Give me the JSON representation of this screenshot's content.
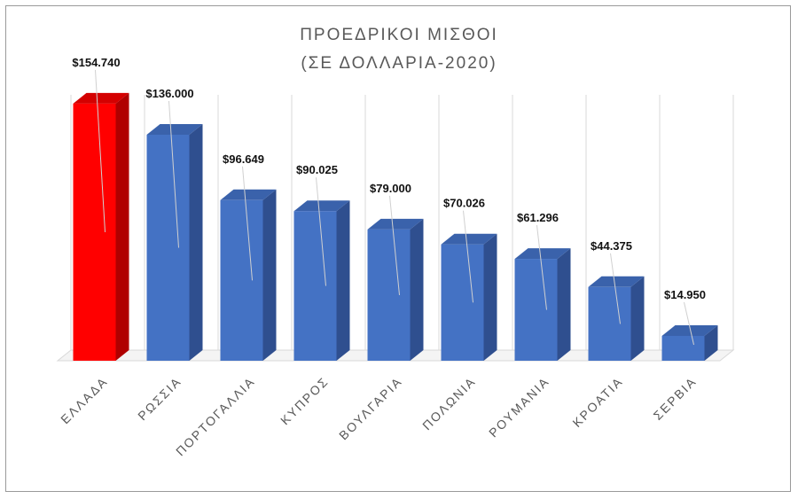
{
  "chart_data": {
    "type": "bar",
    "title": "ΠΡΟΕΔΡΙΚΟΙ ΜΙΣΘΟΙ",
    "subtitle": "(ΣΕ ΔΟΛΛΑΡΙΑ-2020)",
    "categories": [
      "ΕΛΛΑΔΑ",
      "ΡΩΣΣΙΑ",
      "ΠΟΡΤΟΓΑΛΛΙΑ",
      "ΚΥΠΡΟΣ",
      "ΒΟΥΛΓΑΡΙΑ",
      "ΠΟΛΩΝΙΑ",
      "ΡΟΥΜΑΝΙΑ",
      "ΚΡΟΑΤΙΑ",
      "ΣΕΡΒΙΑ"
    ],
    "values": [
      154740,
      136000,
      96649,
      90025,
      79000,
      70026,
      61296,
      44375,
      14950
    ],
    "labels": [
      "$154.740",
      "$136.000",
      "$96.649",
      "$90.025",
      "$79.000",
      "$70.026",
      "$61.296",
      "$44.375",
      "$14.950"
    ],
    "ylim": [
      0,
      160000
    ],
    "xlabel": "",
    "ylabel": "",
    "grid": true,
    "legend": "none",
    "bar_style": "3d",
    "colors": {
      "highlight": "#ff0000",
      "highlight_side": "#b00000",
      "highlight_top": "#d40000",
      "bar": "#4472c4",
      "bar_side": "#2f4f8f",
      "bar_top": "#3a62ab",
      "gridline": "#d9d9d9",
      "title": "#595959",
      "category_text": "#595959"
    },
    "highlight_index": 0
  }
}
